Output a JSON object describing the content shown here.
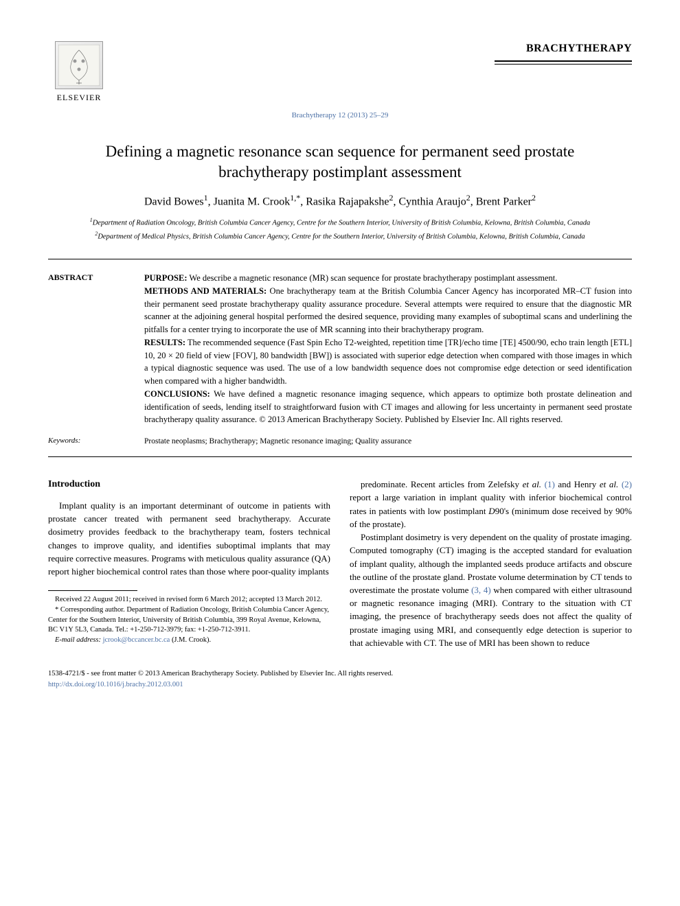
{
  "header": {
    "publisher_label": "ELSEVIER",
    "journal_name": "BRACHYTHERAPY",
    "citation": "Brachytherapy 12 (2013) 25–29"
  },
  "article": {
    "title": "Defining a magnetic resonance scan sequence for permanent seed prostate brachytherapy postimplant assessment",
    "authors_html": "David Bowes<span class='sup'>1</span>, Juanita M. Crook<span class='sup'>1,*</span>, Rasika Rajapakshe<span class='sup'>2</span>, Cynthia Araujo<span class='sup'>2</span>, Brent Parker<span class='sup'>2</span>",
    "affiliations": [
      "<span class='sup'>1</span>Department of Radiation Oncology, British Columbia Cancer Agency, Centre for the Southern Interior, University of British Columbia, Kelowna, British Columbia, Canada",
      "<span class='sup'>2</span>Department of Medical Physics, British Columbia Cancer Agency, Centre for the Southern Interior, University of British Columbia, Kelowna, British Columbia, Canada"
    ]
  },
  "abstract": {
    "label": "ABSTRACT",
    "sections": [
      {
        "label": "PURPOSE:",
        "text": "We describe a magnetic resonance (MR) scan sequence for prostate brachytherapy postimplant assessment."
      },
      {
        "label": "METHODS AND MATERIALS:",
        "text": "One brachytherapy team at the British Columbia Cancer Agency has incorporated MR–CT fusion into their permanent seed prostate brachytherapy quality assurance procedure. Several attempts were required to ensure that the diagnostic MR scanner at the adjoining general hospital performed the desired sequence, providing many examples of suboptimal scans and underlining the pitfalls for a center trying to incorporate the use of MR scanning into their brachytherapy program."
      },
      {
        "label": "RESULTS:",
        "text": "The recommended sequence (Fast Spin Echo T2-weighted, repetition time [TR]/echo time [TE] 4500/90, echo train length [ETL] 10, 20 × 20 field of view [FOV], 80 bandwidth [BW]) is associated with superior edge detection when compared with those images in which a typical diagnostic sequence was used. The use of a low bandwidth sequence does not compromise edge detection or seed identification when compared with a higher bandwidth."
      },
      {
        "label": "CONCLUSIONS:",
        "text": "We have defined a magnetic resonance imaging sequence, which appears to optimize both prostate delineation and identification of seeds, lending itself to straightforward fusion with CT images and allowing for less uncertainty in permanent seed prostate brachytherapy quality assurance. © 2013 American Brachytherapy Society. Published by Elsevier Inc. All rights reserved."
      }
    ],
    "keywords_label": "Keywords:",
    "keywords": "Prostate neoplasms; Brachytherapy; Magnetic resonance imaging; Quality assurance"
  },
  "body": {
    "intro_heading": "Introduction",
    "col1_p1": "Implant quality is an important determinant of outcome in patients with prostate cancer treated with permanent seed brachytherapy. Accurate dosimetry provides feedback to the brachytherapy team, fosters technical changes to improve quality, and identifies suboptimal implants that may require corrective measures. Programs with meticulous quality assurance (QA) report higher biochemical control rates than those where poor-quality implants",
    "col2_p1_html": "predominate. Recent articles from Zelefsky <i>et al.</i> <span class='ref'>(1)</span> and Henry <i>et al.</i> <span class='ref'>(2)</span> report a large variation in implant quality with inferior biochemical control rates in patients with low postimplant <i>D</i>90's (minimum dose received by 90% of the prostate).",
    "col2_p2_html": "Postimplant dosimetry is very dependent on the quality of prostate imaging. Computed tomography (CT) imaging is the accepted standard for evaluation of implant quality, although the implanted seeds produce artifacts and obscure the outline of the prostate gland. Prostate volume determination by CT tends to overestimate the prostate volume <span class='ref'>(3, 4)</span> when compared with either ultrasound or magnetic resonance imaging (MRI). Contrary to the situation with CT imaging, the presence of brachytherapy seeds does not affect the quality of prostate imaging using MRI, and consequently edge detection is superior to that achievable with CT. The use of MRI has been shown to reduce"
  },
  "footnotes": {
    "received": "Received 22 August 2011; received in revised form 6 March 2012; accepted 13 March 2012.",
    "corresponding": "* Corresponding author. Department of Radiation Oncology, British Columbia Cancer Agency, Center for the Southern Interior, University of British Columbia, 399 Royal Avenue, Kelowna, BC V1Y 5L3, Canada. Tel.: +1-250-712-3979; fax: +1-250-712-3911.",
    "email_label": "E-mail address:",
    "email": "jcrook@bccancer.bc.ca",
    "email_suffix": "(J.M. Crook)."
  },
  "footer": {
    "copyright": "1538-4721/$ - see front matter © 2013 American Brachytherapy Society. Published by Elsevier Inc. All rights reserved.",
    "doi": "http://dx.doi.org/10.1016/j.brachy.2012.03.001"
  },
  "colors": {
    "link": "#4a6fa5",
    "text": "#000000",
    "background": "#ffffff"
  },
  "typography": {
    "title_fontsize": 23,
    "body_fontsize": 13,
    "abstract_fontsize": 12.5,
    "footnote_fontsize": 10.5,
    "font_family": "Georgia, Times New Roman, serif"
  }
}
